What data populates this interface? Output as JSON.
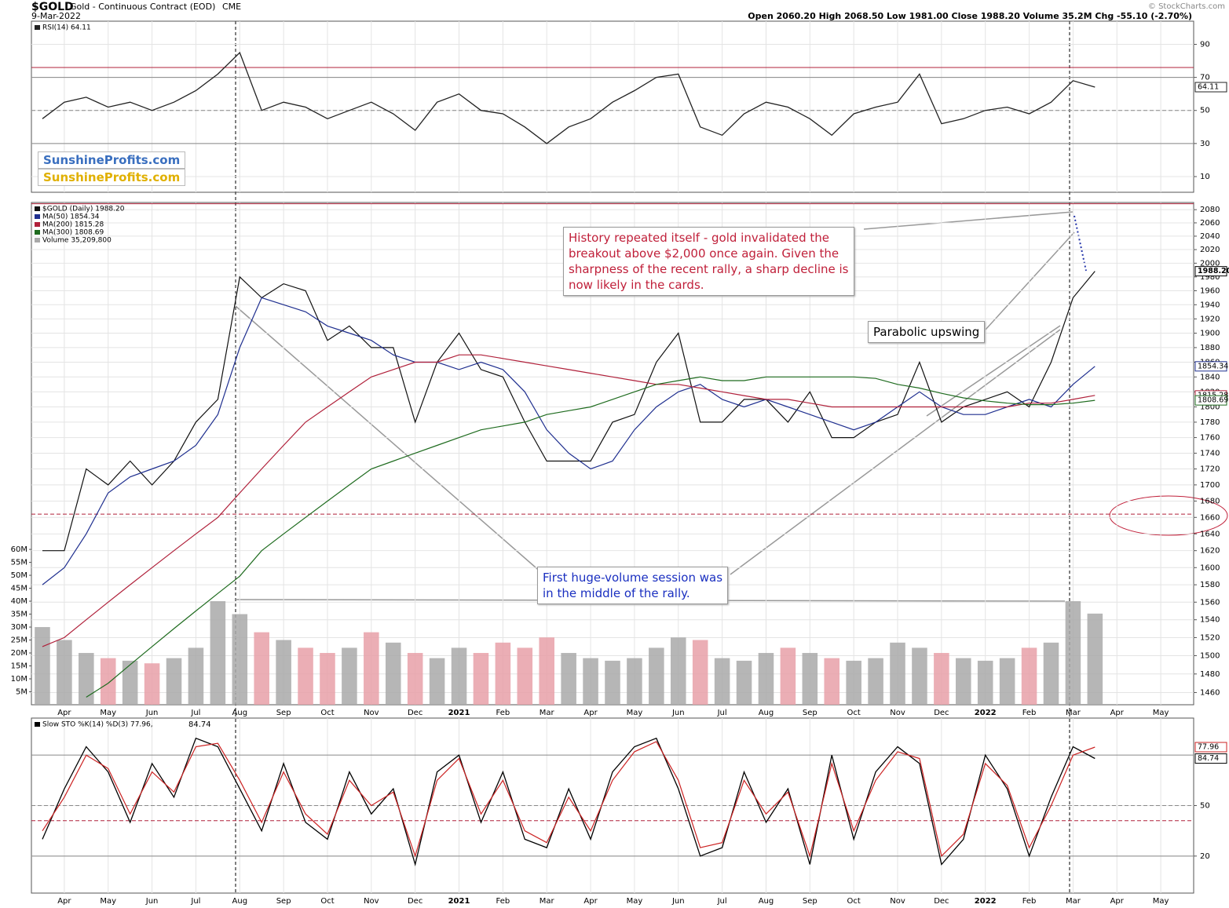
{
  "header": {
    "symbol": "$GOLD",
    "name": "Gold - Continuous Contract (EOD)",
    "exchange": "CME",
    "date": "9-Mar-2022",
    "ohlc": "Open 2060.20  High 2068.50  Low 1981.00  Close 1988.20  Volume 35.2M  Chg -55.10 (-2.70%)",
    "copyright": "© StockCharts.com"
  },
  "logos": [
    "SunshineProfits.com",
    "SunshineProfits.com"
  ],
  "annotations": [
    {
      "lines": [
        "History repeated itself - gold invalidated the",
        "breakout above $2,000 once again. Given the",
        "sharpness of the recent rally, a sharp decline is",
        "now likely in the cards."
      ]
    },
    {
      "lines": [
        "Parabolic upswing"
      ]
    },
    {
      "lines": [
        "First huge-volume session was",
        "in the middle of the rally."
      ]
    }
  ],
  "chart_data": [
    {
      "type": "line",
      "ylim": [
        0.5,
        104
      ],
      "yticks": [
        10,
        30,
        50,
        70,
        90
      ],
      "grid": true,
      "hlines": [
        {
          "value": 76,
          "color": "#b0203a",
          "style": "solid"
        },
        {
          "value": 70,
          "color": "#888",
          "style": "solid"
        },
        {
          "value": 50,
          "color": "#888",
          "style": "dashed"
        },
        {
          "value": 30,
          "color": "#888",
          "style": "solid"
        }
      ],
      "series": [
        {
          "name": "RSI(14) 64.11",
          "color": "#222",
          "values": [
            45,
            55,
            58,
            52,
            55,
            50,
            55,
            62,
            72,
            85,
            50,
            55,
            52,
            45,
            50,
            55,
            48,
            38,
            55,
            60,
            50,
            48,
            40,
            30,
            40,
            45,
            55,
            62,
            70,
            72,
            40,
            35,
            48,
            55,
            52,
            45,
            35,
            48,
            52,
            55,
            72,
            42,
            45,
            50,
            52,
            48,
            55,
            68,
            64.11,
            null,
            null,
            null,
            null
          ]
        }
      ],
      "tags": [
        "64.11"
      ]
    },
    {
      "type": "line",
      "log": true,
      "ylim": [
        1447,
        2091
      ],
      "yticks": [
        1460,
        1480,
        1500,
        1520,
        1540,
        1560,
        1580,
        1600,
        1620,
        1640,
        1660,
        1680,
        1700,
        1720,
        1740,
        1760,
        1780,
        1800,
        1820,
        1840,
        1860,
        1880,
        1900,
        1920,
        1940,
        1960,
        1980,
        2000,
        2020,
        2040,
        2060,
        2080
      ],
      "y2lim": [
        0,
        194000000
      ],
      "y2ticks": [
        {
          "value": 5000000,
          "label": "5M"
        },
        {
          "value": 10000000,
          "label": "10M"
        },
        {
          "value": 15000000,
          "label": "15M"
        },
        {
          "value": 20000000,
          "label": "20M"
        },
        {
          "value": 25000000,
          "label": "25M"
        },
        {
          "value": 30000000,
          "label": "30M"
        },
        {
          "value": 35000000,
          "label": "35M"
        },
        {
          "value": 40000000,
          "label": "40M"
        },
        {
          "value": 45000000,
          "label": "45M"
        },
        {
          "value": 50000000,
          "label": "50M"
        },
        {
          "value": 55000000,
          "label": "55M"
        },
        {
          "value": 60000000,
          "label": "60M"
        }
      ],
      "grid": true,
      "hlines": [
        {
          "value": 2089,
          "color": "#b0203a",
          "style": "solid"
        },
        {
          "value": 1664,
          "color": "#b0203a",
          "style": "dashed"
        }
      ],
      "categories": [
        null,
        "Apr",
        null,
        "May",
        null,
        "Jun",
        null,
        "Jul",
        null,
        "Aug",
        null,
        "Sep",
        null,
        "Oct",
        null,
        "Nov",
        null,
        "Dec",
        null,
        "2021",
        null,
        "Feb",
        null,
        "Mar",
        null,
        "Apr",
        null,
        "May",
        null,
        "Jun",
        null,
        "Jul",
        null,
        "Aug",
        null,
        "Sep",
        null,
        "Oct",
        null,
        "Nov",
        null,
        "Dec",
        null,
        "2022",
        null,
        "Feb",
        null,
        "Mar",
        null,
        "Apr",
        null,
        "May",
        null
      ],
      "series": [
        {
          "name": "$GOLD (Daily) 1988.20",
          "color": "#111",
          "values": [
            1620,
            1620,
            1720,
            1700,
            1730,
            1700,
            1730,
            1780,
            1810,
            1980,
            1950,
            1970,
            1960,
            1890,
            1910,
            1880,
            1880,
            1780,
            1860,
            1900,
            1850,
            1840,
            1780,
            1730,
            1730,
            1730,
            1780,
            1790,
            1860,
            1900,
            1780,
            1780,
            1810,
            1810,
            1780,
            1820,
            1760,
            1760,
            1780,
            1790,
            1860,
            1780,
            1800,
            1810,
            1820,
            1800,
            1860,
            1950,
            1988.2,
            null,
            null,
            null,
            null
          ]
        },
        {
          "name": "MA(50) 1854.34",
          "color": "#1f2f8f",
          "values": [
            1580,
            1600,
            1640,
            1690,
            1710,
            1720,
            1730,
            1750,
            1790,
            1880,
            1950,
            1940,
            1930,
            1910,
            1900,
            1890,
            1870,
            1860,
            1860,
            1850,
            1860,
            1850,
            1820,
            1770,
            1740,
            1720,
            1730,
            1770,
            1800,
            1820,
            1830,
            1810,
            1800,
            1810,
            1800,
            1790,
            1780,
            1770,
            1780,
            1800,
            1820,
            1800,
            1790,
            1790,
            1800,
            1810,
            1800,
            1830,
            1854.34,
            null,
            null,
            null,
            null
          ]
        },
        {
          "name": "MA(200) 1815.28",
          "color": "#b0203a",
          "values": [
            1510,
            1520,
            1540,
            1560,
            1580,
            1600,
            1620,
            1640,
            1660,
            1690,
            1720,
            1750,
            1780,
            1800,
            1820,
            1840,
            1850,
            1860,
            1860,
            1870,
            1870,
            1865,
            1860,
            1855,
            1850,
            1845,
            1840,
            1835,
            1830,
            1830,
            1825,
            1820,
            1815,
            1810,
            1810,
            1805,
            1800,
            1800,
            1800,
            1800,
            1800,
            1800,
            1800,
            1800,
            1800,
            1805,
            1805,
            1810,
            1815.28,
            null,
            null,
            null,
            null
          ]
        },
        {
          "name": "MA(300) 1808.69",
          "color": "#1e6b1e",
          "values": [
            null,
            null,
            1455,
            1470,
            1490,
            1510,
            1530,
            1550,
            1570,
            1590,
            1620,
            1640,
            1660,
            1680,
            1700,
            1720,
            1730,
            1740,
            1750,
            1760,
            1770,
            1775,
            1780,
            1790,
            1795,
            1800,
            1810,
            1820,
            1830,
            1835,
            1840,
            1835,
            1835,
            1840,
            1840,
            1840,
            1840,
            1840,
            1838,
            1830,
            1825,
            1818,
            1812,
            1808,
            1805,
            1803,
            1803,
            1805,
            1808.69,
            null,
            null,
            null,
            null
          ]
        },
        {
          "name": "Volume 35,209,800",
          "axis": "y2",
          "color": "#a9a9a9",
          "down_color": "#e8a0a8",
          "values": [
            30000000,
            25000000,
            20000000,
            18000000,
            17000000,
            16000000,
            18000000,
            22000000,
            40000000,
            35000000,
            28000000,
            25000000,
            22000000,
            20000000,
            22000000,
            28000000,
            24000000,
            20000000,
            18000000,
            22000000,
            20000000,
            24000000,
            22000000,
            26000000,
            20000000,
            18000000,
            17000000,
            18000000,
            22000000,
            26000000,
            25000000,
            18000000,
            17000000,
            20000000,
            22000000,
            20000000,
            18000000,
            17000000,
            18000000,
            24000000,
            22000000,
            20000000,
            18000000,
            17000000,
            18000000,
            22000000,
            24000000,
            40000000,
            35209800,
            null,
            null,
            null,
            null
          ]
        }
      ],
      "tags": [
        "1988.20",
        "1854.34",
        "1815.28",
        "1808.69"
      ]
    },
    {
      "type": "line",
      "ylim": [
        -2,
        102
      ],
      "yticks": [
        20,
        50
      ],
      "grid": true,
      "hlines": [
        {
          "value": 80,
          "color": "#888",
          "style": "solid"
        },
        {
          "value": 50,
          "color": "#888",
          "style": "dashed"
        },
        {
          "value": 41,
          "color": "#b0203a",
          "style": "dashed"
        },
        {
          "value": 20,
          "color": "#888",
          "style": "solid"
        }
      ],
      "categories": [
        null,
        "Apr",
        null,
        "May",
        null,
        "Jun",
        null,
        "Jul",
        null,
        "Aug",
        null,
        "Sep",
        null,
        "Oct",
        null,
        "Nov",
        null,
        "Dec",
        null,
        "2021",
        null,
        "Feb",
        null,
        "Mar",
        null,
        "Apr",
        null,
        "May",
        null,
        "Jun",
        null,
        "Jul",
        null,
        "Aug",
        null,
        "Sep",
        null,
        "Oct",
        null,
        "Nov",
        null,
        "Dec",
        null,
        "2022",
        null,
        "Feb",
        null,
        "Mar",
        null,
        "Apr",
        null,
        "May",
        null
      ],
      "series": [
        {
          "name": "Slow STO %K(14) %D(3) 77.96,",
          "color": "#000",
          "values": [
            30,
            60,
            85,
            70,
            40,
            75,
            55,
            90,
            85,
            60,
            35,
            75,
            40,
            30,
            70,
            45,
            60,
            15,
            70,
            80,
            40,
            70,
            30,
            25,
            60,
            30,
            70,
            85,
            90,
            60,
            20,
            25,
            70,
            40,
            60,
            15,
            80,
            30,
            70,
            85,
            75,
            15,
            30,
            80,
            60,
            20,
            55,
            85,
            77.96,
            null,
            null,
            null,
            null
          ]
        },
        {
          "name": "84.74",
          "color": "#cc2222",
          "values": [
            35,
            55,
            80,
            72,
            45,
            70,
            58,
            85,
            87,
            65,
            40,
            70,
            45,
            33,
            65,
            50,
            58,
            20,
            65,
            78,
            45,
            65,
            35,
            28,
            55,
            35,
            65,
            82,
            88,
            65,
            25,
            28,
            65,
            45,
            58,
            20,
            75,
            35,
            65,
            82,
            78,
            20,
            33,
            75,
            62,
            25,
            50,
            80,
            84.74,
            null,
            null,
            null,
            null
          ]
        }
      ],
      "tags": [
        "84.74",
        "77.96"
      ]
    }
  ]
}
